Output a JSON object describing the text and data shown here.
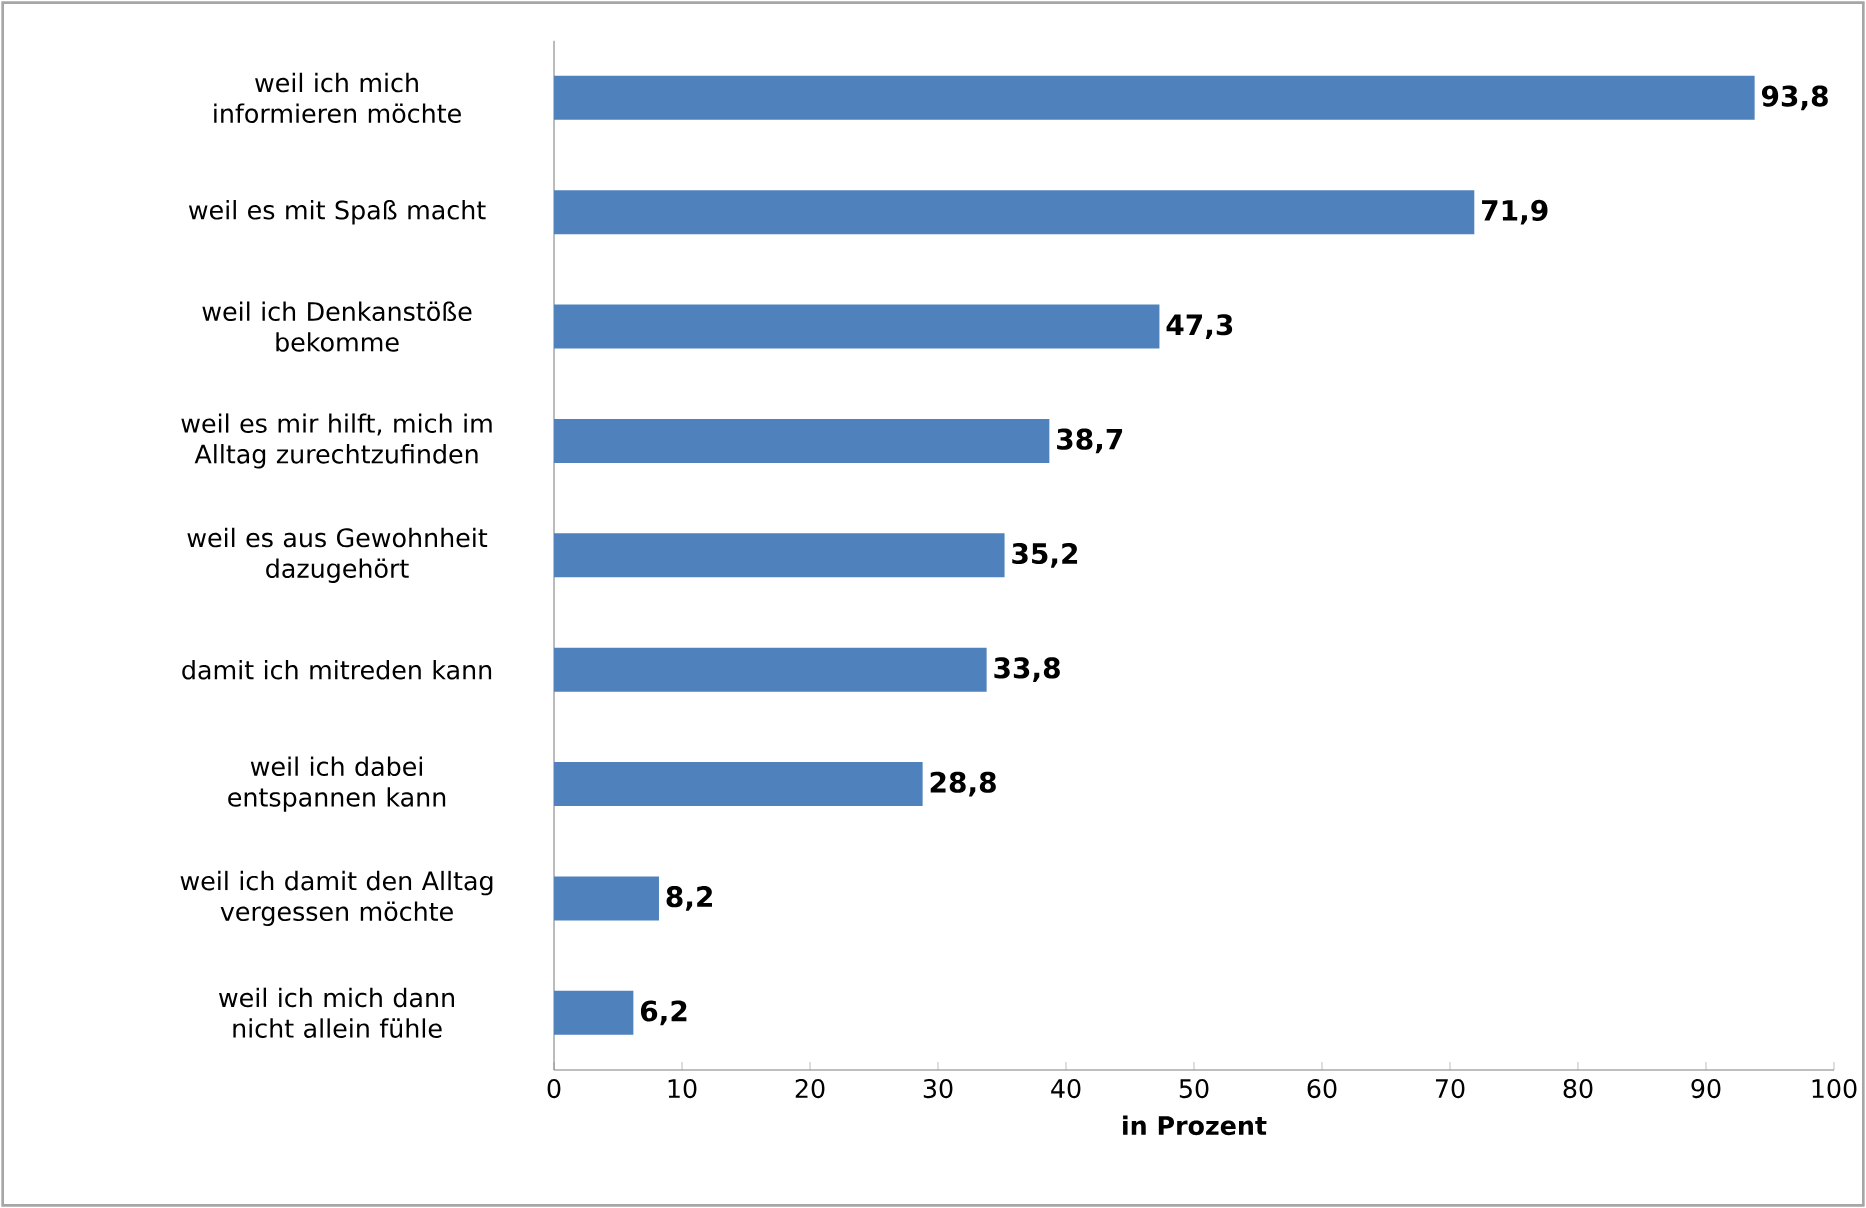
{
  "chart_data": {
    "type": "bar",
    "orientation": "horizontal",
    "xlabel": "in Prozent",
    "categories": [
      "weil ich mich informieren möchte",
      "weil es mit Spaß macht",
      "weil ich Denkanstöße bekomme",
      "weil es mir hilft, mich im Alltag zurechtzufinden",
      "weil es aus Gewohnheit dazugehört",
      "damit ich mitreden kann",
      "weil ich dabei entspannen kann",
      "weil ich damit den Alltag vergessen möchte",
      "weil ich mich dann nicht allein fühle"
    ],
    "values": [
      93.8,
      71.9,
      47.3,
      38.7,
      35.2,
      33.8,
      28.8,
      8.2,
      6.2
    ],
    "value_labels": [
      "93,8",
      "71,9",
      "47,3",
      "38,7",
      "35,2",
      "33,8",
      "28,8",
      "8,2",
      "6,2"
    ],
    "color": "#4f81bd",
    "xlim": [
      0,
      100
    ],
    "xticks": [
      0,
      10,
      20,
      30,
      40,
      50,
      60,
      70,
      80,
      90,
      100
    ]
  }
}
